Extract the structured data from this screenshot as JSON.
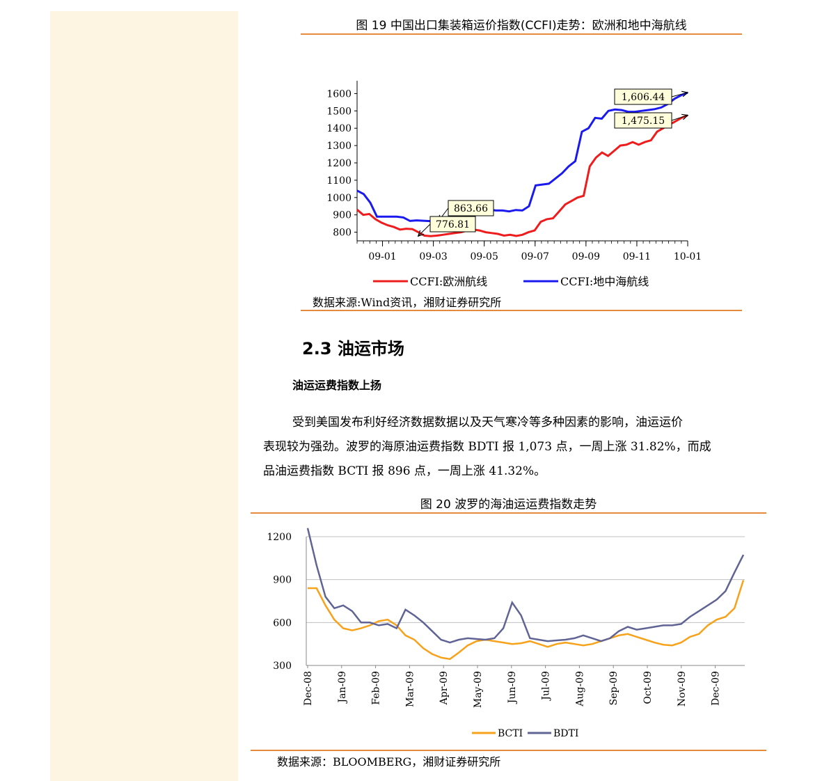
{
  "figure19": {
    "title": "图 19 中国出口集装箱运价指数(CCFI)走势：欧洲和地中海航线",
    "source": "数据来源:Wind资讯，湘财证券研究所"
  },
  "section": {
    "heading": "2.3 油运市场",
    "subheading": "油运运费指数上扬",
    "paragraph_lines": [
      "受到美国发布利好经济数据数据以及天气寒冷等多种因素的影响，油运运价",
      "表现较为强劲。波罗的海原油运费指数 BDTI 报 1,073 点，一周上涨 31.82%，而成",
      "品油运费指数 BCTI 报 896 点，一周上涨 41.32%。"
    ]
  },
  "figure20": {
    "title": "图 20 波罗的海油运运费指数走势",
    "source": "数据来源：BLOOMBERG，湘财证券研究所"
  },
  "chart_data": [
    {
      "type": "line",
      "title": "图 19 中国出口集装箱运价指数(CCFI)走势：欧洲和地中海航线",
      "x_ticks": [
        "09-01",
        "09-03",
        "09-05",
        "09-07",
        "09-09",
        "09-11",
        "10-01"
      ],
      "ylim": [
        750,
        1650
      ],
      "y_ticks": [
        800,
        900,
        1000,
        1100,
        1200,
        1300,
        1400,
        1500,
        1600
      ],
      "xlim": [
        0,
        65
      ],
      "colors": {
        "CCFI:欧洲航线": "#ee1c1c",
        "CCFI:地中海航线": "#1a1aee"
      },
      "series": [
        {
          "name": "CCFI:欧洲航线",
          "values": [
            930,
            900,
            905,
            875,
            855,
            840,
            830,
            815,
            820,
            818,
            800,
            780,
            777,
            780,
            785,
            790,
            795,
            800,
            810,
            815,
            810,
            800,
            795,
            790,
            780,
            785,
            778,
            785,
            800,
            810,
            860,
            875,
            880,
            920,
            960,
            980,
            1000,
            1010,
            1180,
            1230,
            1260,
            1240,
            1270,
            1300,
            1305,
            1320,
            1305,
            1320,
            1330,
            1380,
            1400,
            1420,
            1440,
            1460,
            1475
          ]
        },
        {
          "name": "CCFI:地中海航线",
          "values": [
            1040,
            1020,
            970,
            890,
            890,
            890,
            890,
            885,
            865,
            868,
            866,
            864,
            864,
            864,
            864,
            864,
            940,
            945,
            940,
            935,
            930,
            925,
            925,
            920,
            928,
            925,
            950,
            1070,
            1075,
            1080,
            1110,
            1140,
            1180,
            1210,
            1380,
            1400,
            1460,
            1455,
            1500,
            1508,
            1505,
            1495,
            1495,
            1500,
            1505,
            1510,
            1520,
            1540,
            1570,
            1590,
            1606
          ]
        }
      ],
      "annotations": [
        {
          "label": "1,606.44",
          "series": "CCFI:地中海航线"
        },
        {
          "label": "1,475.15",
          "series": "CCFI:欧洲航线"
        },
        {
          "label": "863.66",
          "series": "CCFI:地中海航线"
        },
        {
          "label": "776.81",
          "series": "CCFI:欧洲航线"
        }
      ],
      "legend": [
        "CCFI:欧洲航线",
        "CCFI:地中海航线"
      ],
      "legend_position": "bottom"
    },
    {
      "type": "line",
      "title": "图 20 波罗的海油运运费指数走势",
      "x_ticks": [
        "Dec-08",
        "Jan-09",
        "Feb-09",
        "Mar-09",
        "Apr-09",
        "May-09",
        "Jun-09",
        "Jul-09",
        "Aug-09",
        "Sep-09",
        "Oct-09",
        "Nov-09",
        "Dec-09"
      ],
      "ylim": [
        300,
        1200
      ],
      "y_ticks": [
        300,
        600,
        900,
        1200
      ],
      "colors": {
        "BCTI": "#f7a21b",
        "BDTI": "#606494"
      },
      "series": [
        {
          "name": "BCTI",
          "values": [
            840,
            840,
            720,
            620,
            560,
            545,
            560,
            580,
            610,
            620,
            580,
            510,
            480,
            420,
            380,
            355,
            345,
            390,
            440,
            470,
            480,
            470,
            460,
            450,
            455,
            470,
            450,
            430,
            450,
            460,
            450,
            440,
            450,
            470,
            490,
            510,
            520,
            500,
            480,
            460,
            445,
            440,
            460,
            500,
            520,
            580,
            620,
            640,
            700,
            896
          ]
        },
        {
          "name": "BDTI",
          "values": [
            1260,
            1000,
            780,
            700,
            720,
            680,
            600,
            600,
            580,
            590,
            560,
            690,
            650,
            600,
            540,
            480,
            460,
            480,
            490,
            485,
            480,
            490,
            560,
            740,
            650,
            490,
            480,
            470,
            475,
            480,
            490,
            510,
            490,
            470,
            490,
            540,
            570,
            550,
            560,
            570,
            580,
            580,
            590,
            640,
            680,
            720,
            760,
            820,
            950,
            1073
          ]
        }
      ],
      "legend": [
        "BCTI",
        "BDTI"
      ],
      "legend_position": "bottom"
    }
  ]
}
